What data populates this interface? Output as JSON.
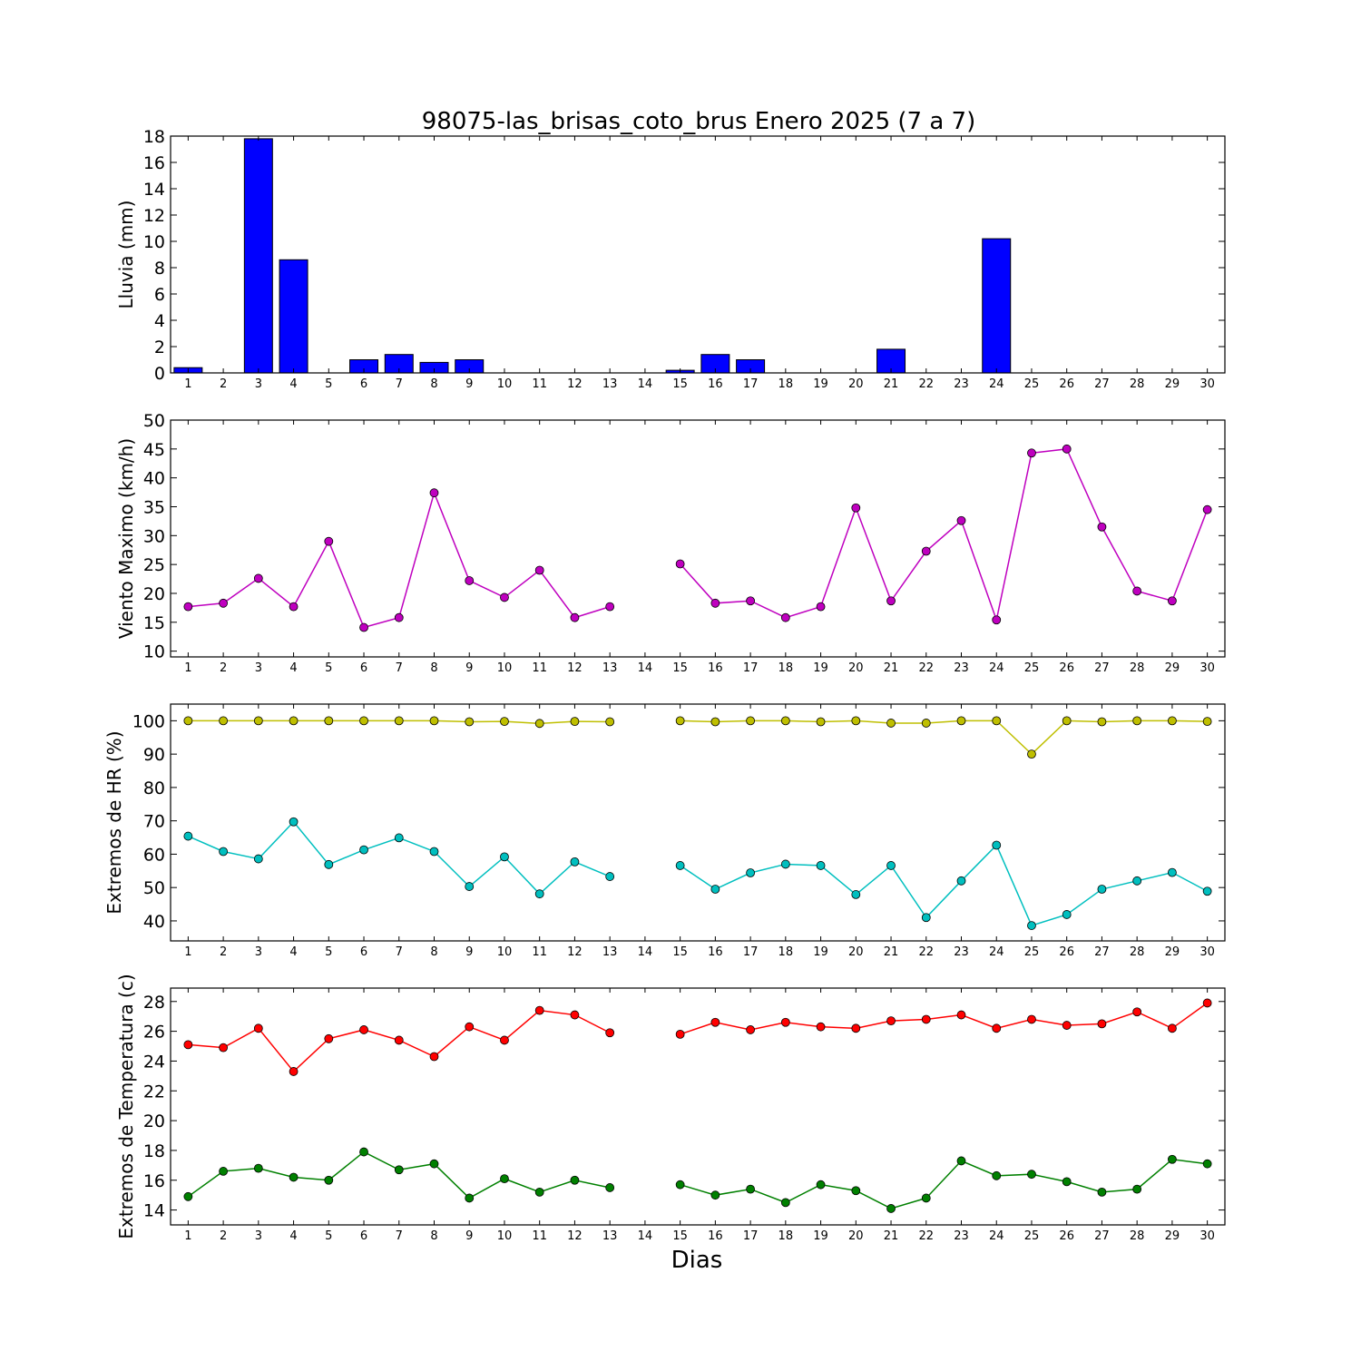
{
  "chart_data": [
    {
      "type": "bar",
      "title": "98075-las_brisas_coto_brus Enero 2025  (7 a 7)",
      "ylabel": "Lluvia (mm)",
      "xlabel": "",
      "ylim": [
        0,
        18
      ],
      "yticks": [
        0,
        2,
        4,
        6,
        8,
        10,
        12,
        14,
        16,
        18
      ],
      "categories": [
        "1",
        "2",
        "3",
        "4",
        "5",
        "6",
        "7",
        "8",
        "9",
        "10",
        "11",
        "12",
        "13",
        "14",
        "15",
        "16",
        "17",
        "18",
        "19",
        "20",
        "21",
        "22",
        "23",
        "24",
        "25",
        "26",
        "27",
        "28",
        "29",
        "30"
      ],
      "series": [
        {
          "color": "#0000ff",
          "values": [
            0.4,
            0,
            17.8,
            8.6,
            0,
            1.0,
            1.4,
            0.8,
            1.0,
            0,
            0,
            0,
            0,
            0,
            0.2,
            1.4,
            1.0,
            0,
            0,
            0,
            1.8,
            0,
            0,
            10.2,
            0,
            0,
            0,
            0,
            0,
            0
          ]
        }
      ]
    },
    {
      "type": "line",
      "title": "",
      "ylabel": "Viento Maximo (km/h)",
      "xlabel": "",
      "ylim": [
        9,
        50
      ],
      "yticks": [
        10,
        15,
        20,
        25,
        30,
        35,
        40,
        45,
        50
      ],
      "categories": [
        "1",
        "2",
        "3",
        "4",
        "5",
        "6",
        "7",
        "8",
        "9",
        "10",
        "11",
        "12",
        "13",
        "14",
        "15",
        "16",
        "17",
        "18",
        "19",
        "20",
        "21",
        "22",
        "23",
        "24",
        "25",
        "26",
        "27",
        "28",
        "29",
        "30"
      ],
      "series": [
        {
          "color": "#bf00bf",
          "values": [
            17.7,
            18.3,
            22.6,
            17.7,
            29.0,
            14.1,
            15.8,
            37.4,
            22.2,
            19.3,
            24.0,
            15.8,
            17.7,
            null,
            25.1,
            18.3,
            18.7,
            15.8,
            17.7,
            34.8,
            18.7,
            27.3,
            32.6,
            15.4,
            44.3,
            45.0,
            31.5,
            20.4,
            18.7,
            34.5
          ]
        }
      ]
    },
    {
      "type": "line",
      "title": "",
      "ylabel": "Extremos de HR (%)",
      "xlabel": "",
      "ylim": [
        34,
        105
      ],
      "yticks": [
        40,
        50,
        60,
        70,
        80,
        90,
        100
      ],
      "categories": [
        "1",
        "2",
        "3",
        "4",
        "5",
        "6",
        "7",
        "8",
        "9",
        "10",
        "11",
        "12",
        "13",
        "14",
        "15",
        "16",
        "17",
        "18",
        "19",
        "20",
        "21",
        "22",
        "23",
        "24",
        "25",
        "26",
        "27",
        "28",
        "29",
        "30"
      ],
      "series": [
        {
          "color": "#bfbf00",
          "values": [
            100,
            100,
            100,
            100,
            100,
            100,
            100,
            100,
            99.7,
            99.8,
            99.2,
            99.8,
            99.7,
            null,
            100,
            99.7,
            100,
            100,
            99.7,
            100,
            99.3,
            99.3,
            100,
            100,
            90.0,
            100,
            99.7,
            100,
            100,
            99.8
          ]
        },
        {
          "color": "#00bfbf",
          "values": [
            65.4,
            60.8,
            58.6,
            69.7,
            56.9,
            61.3,
            64.9,
            60.8,
            50.3,
            59.2,
            48.1,
            57.7,
            53.3,
            null,
            56.6,
            49.5,
            54.4,
            57.0,
            56.6,
            47.9,
            56.6,
            41.0,
            52.0,
            62.7,
            38.6,
            41.9,
            49.5,
            52.0,
            54.5,
            48.9
          ]
        }
      ]
    },
    {
      "type": "line",
      "title": "",
      "ylabel": "Extremos de Temperatura (c)",
      "xlabel": "Dias",
      "ylim": [
        13,
        28.9
      ],
      "yticks": [
        14,
        16,
        18,
        20,
        22,
        24,
        26,
        28
      ],
      "categories": [
        "1",
        "2",
        "3",
        "4",
        "5",
        "6",
        "7",
        "8",
        "9",
        "10",
        "11",
        "12",
        "13",
        "14",
        "15",
        "16",
        "17",
        "18",
        "19",
        "20",
        "21",
        "22",
        "23",
        "24",
        "25",
        "26",
        "27",
        "28",
        "29",
        "30"
      ],
      "series": [
        {
          "color": "#ff0000",
          "values": [
            25.1,
            24.9,
            26.2,
            23.3,
            25.5,
            26.1,
            25.4,
            24.3,
            26.3,
            25.4,
            27.4,
            27.1,
            25.9,
            null,
            25.8,
            26.6,
            26.1,
            26.6,
            26.3,
            26.2,
            26.7,
            26.8,
            27.1,
            26.2,
            26.8,
            26.4,
            26.5,
            27.3,
            26.2,
            27.9
          ]
        },
        {
          "color": "#008000",
          "values": [
            14.9,
            16.6,
            16.8,
            16.2,
            16.0,
            17.9,
            16.7,
            17.1,
            14.8,
            16.1,
            15.2,
            16.0,
            15.5,
            null,
            15.7,
            15.0,
            15.4,
            14.5,
            15.7,
            15.3,
            14.1,
            14.8,
            17.3,
            16.3,
            16.4,
            15.9,
            15.2,
            15.4,
            17.4,
            17.1
          ]
        }
      ]
    }
  ]
}
